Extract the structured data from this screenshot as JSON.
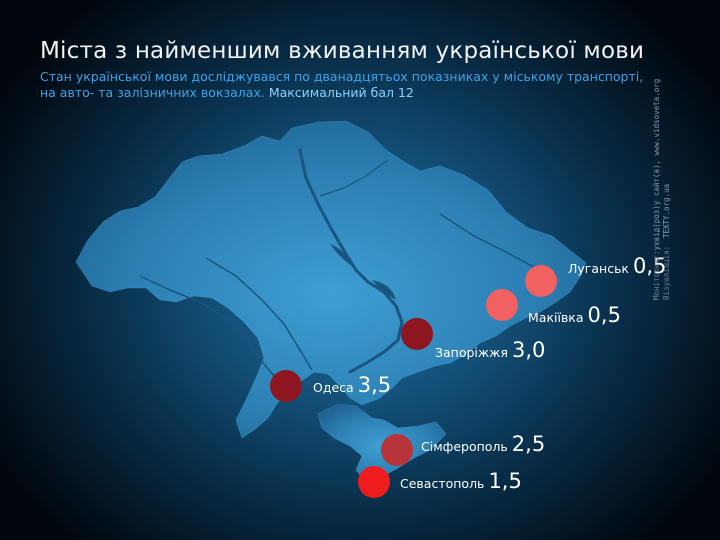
{
  "title": "Міста з найменшим вживанням української мови",
  "subtitle_line1": "Стан української мови досліджувався по дванадцятьох показниках у міському транспорті,",
  "subtitle_line2_a": "на авто- та залізничних вокзалах.",
  "subtitle_line2_b": "Максимальний бал 12",
  "cities": [
    {
      "name": "Луганськ",
      "score": "0,5",
      "color": "#f26161"
    },
    {
      "name": "Макіївка",
      "score": "0,5",
      "color": "#f26161"
    },
    {
      "name": "Запоріжжя",
      "score": "3,0",
      "color": "#8e1620"
    },
    {
      "name": "Одеса",
      "score": "3,5",
      "color": "#8e1620"
    },
    {
      "name": "Сімферополь",
      "score": "2,5",
      "color": "#b7343a"
    },
    {
      "name": "Севастополь",
      "score": "1,5",
      "color": "#ee1c1c"
    }
  ],
  "credits": {
    "label1": "Моніторинг:",
    "value1": "ухвід(роз)у сайт(а), www.vidsoveta.org",
    "label2": "Візуаліація:",
    "value2": "TEXTY.org.ua"
  }
}
